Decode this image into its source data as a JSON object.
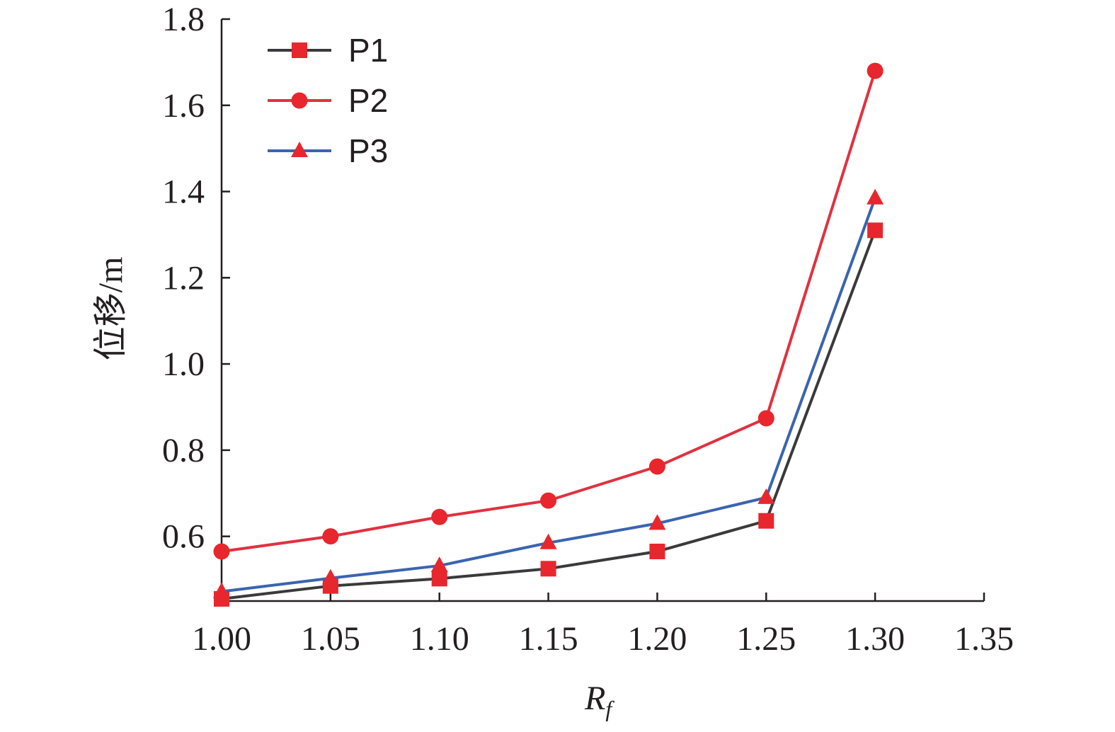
{
  "chart_data": {
    "type": "line",
    "xlabel": "R",
    "xlabel_sub": "f",
    "ylabel": "位移/m",
    "xlim": [
      1.0,
      1.35
    ],
    "ylim": [
      0.45,
      1.8
    ],
    "x_ticks": [
      "1.00",
      "1.05",
      "1.10",
      "1.15",
      "1.20",
      "1.25",
      "1.30",
      "1.35"
    ],
    "y_ticks": [
      "0.6",
      "0.8",
      "1.0",
      "1.2",
      "1.4",
      "1.6",
      "1.8"
    ],
    "x": [
      1.0,
      1.05,
      1.1,
      1.15,
      1.2,
      1.25,
      1.3
    ],
    "grid": false,
    "legend_position": "top-left",
    "series": [
      {
        "name": "P1",
        "values": [
          0.455,
          0.485,
          0.502,
          0.525,
          0.565,
          0.636,
          1.31
        ],
        "line_color": "#3a3a3c",
        "marker": "square",
        "marker_color": "#e8262d"
      },
      {
        "name": "P2",
        "values": [
          0.565,
          0.6,
          0.645,
          0.683,
          0.762,
          0.874,
          1.68
        ],
        "line_color": "#e03140",
        "marker": "circle",
        "marker_color": "#e8262d"
      },
      {
        "name": "P3",
        "values": [
          0.472,
          0.503,
          0.532,
          0.585,
          0.63,
          0.69,
          1.385
        ],
        "line_color": "#3a64b0",
        "marker": "triangle",
        "marker_color": "#e8262d"
      }
    ]
  }
}
